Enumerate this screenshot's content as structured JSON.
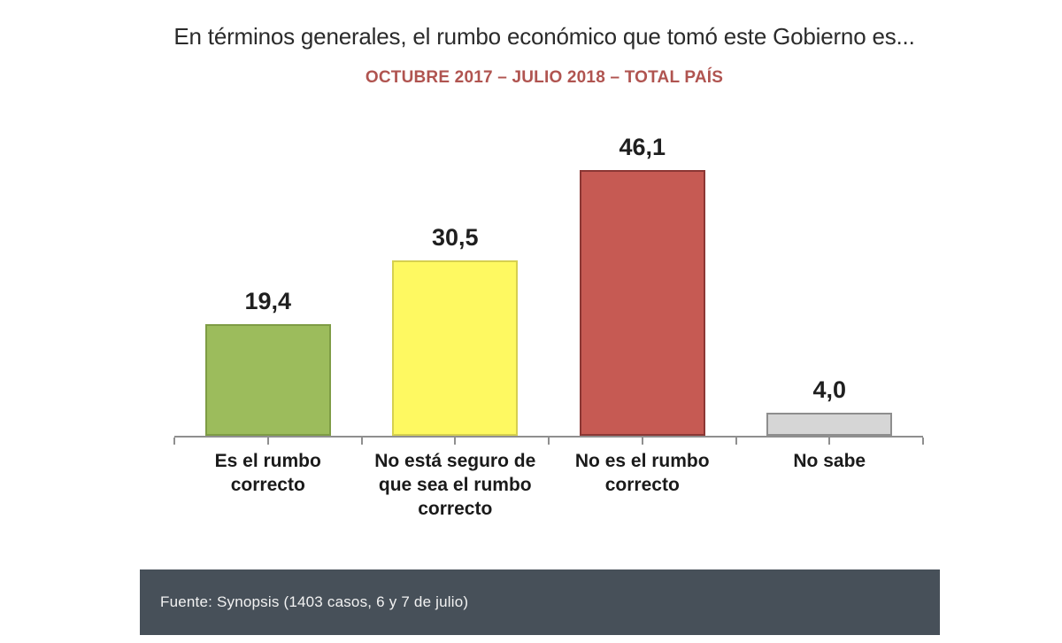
{
  "header": {
    "title": "En términos generales, el rumbo económico que tomó este Gobierno es...",
    "subtitle": "OCTUBRE 2017 – JULIO 2018 – TOTAL PAÍS",
    "title_color": "#2b2b2b",
    "subtitle_color": "#b05450"
  },
  "chart_data": {
    "type": "bar",
    "title": "En términos generales, el rumbo económico que tomó este Gobierno es...",
    "subtitle": "OCTUBRE 2017 – JULIO 2018 – TOTAL PAÍS",
    "categories": [
      "Es el rumbo correcto",
      "No está seguro de que sea el rumbo correcto",
      "No es el rumbo correcto",
      "No sabe"
    ],
    "values": [
      19.4,
      30.5,
      46.1,
      4.0
    ],
    "value_labels": [
      "19,4",
      "30,5",
      "46,1",
      "4,0"
    ],
    "bar_colors": [
      {
        "fill": "#9cbc5c",
        "border": "#7e9c45"
      },
      {
        "fill": "#fef961",
        "border": "#d6d04f"
      },
      {
        "fill": "#c65a53",
        "border": "#8b3734"
      },
      {
        "fill": "#d6d6d6",
        "border": "#8e8e8e"
      }
    ],
    "ylim": [
      0,
      50
    ],
    "grid": false,
    "legend": false,
    "xlabel": "",
    "ylabel": "",
    "axis_color": "#8f8f8f",
    "tick_count": 9
  },
  "footer": {
    "source": "Fuente: Synopsis (1403 casos, 6 y 7 de julio)",
    "background": "#475059",
    "text_color": "#f2f2f2"
  }
}
